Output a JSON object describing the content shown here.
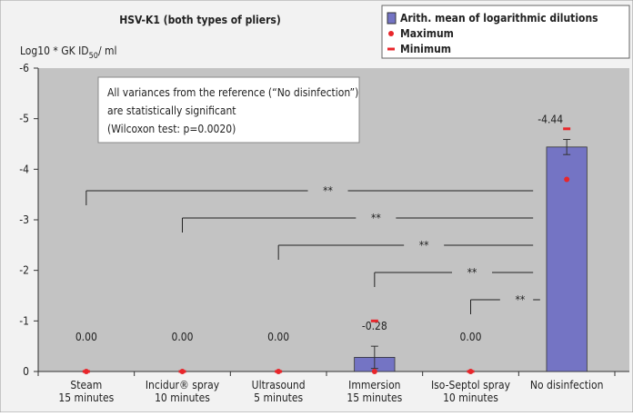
{
  "chart_data": {
    "type": "bar",
    "title": "HSV-K1 (both types of pliers)",
    "y_label": "Log10 * GK ID",
    "y_label_sub": "50",
    "y_label_end": "/ ml",
    "annotation": [
      "All variances from the reference (“No disinfection”)",
      "are statistically significant",
      "(Wilcoxon test: p=0.0020)"
    ],
    "categories": [
      [
        "Steam",
        "15 minutes"
      ],
      [
        "Incidur® spray",
        "10 minutes"
      ],
      [
        "Ultrasound",
        "5 minutes"
      ],
      [
        "Immersion",
        "15 minutes"
      ],
      [
        "Iso-Septol spray",
        "10 minutes"
      ],
      [
        "No disinfection"
      ]
    ],
    "series": [
      {
        "name": "Arith. mean of logarithmic dilutions",
        "color": "#7474c4",
        "values": [
          0,
          0,
          0,
          -0.28,
          0,
          -4.44
        ],
        "value_labels": [
          "0.00",
          "0.00",
          "0.00",
          "-0.28",
          "0.00",
          "-4.44"
        ],
        "errors": [
          null,
          null,
          null,
          0.22,
          null,
          0.15
        ]
      },
      {
        "name": "Maximum",
        "color": "#e8262b",
        "values": [
          0,
          0,
          0,
          0,
          0,
          -3.8
        ]
      },
      {
        "name": "Minimum",
        "color": "#e8262b",
        "values": [
          0,
          0,
          0,
          -1.0,
          0,
          -4.8
        ]
      }
    ],
    "significance": [
      {
        "from": 0,
        "to": 5,
        "label": "**"
      },
      {
        "from": 1,
        "to": 5,
        "label": "**"
      },
      {
        "from": 2,
        "to": 5,
        "label": "**"
      },
      {
        "from": 3,
        "to": 5,
        "label": "**"
      },
      {
        "from": 4,
        "to": 5,
        "label": "**"
      }
    ],
    "ylim": [
      0,
      -6
    ],
    "yticks": [
      0,
      -1,
      -2,
      -3,
      -4,
      -5,
      -6
    ]
  }
}
